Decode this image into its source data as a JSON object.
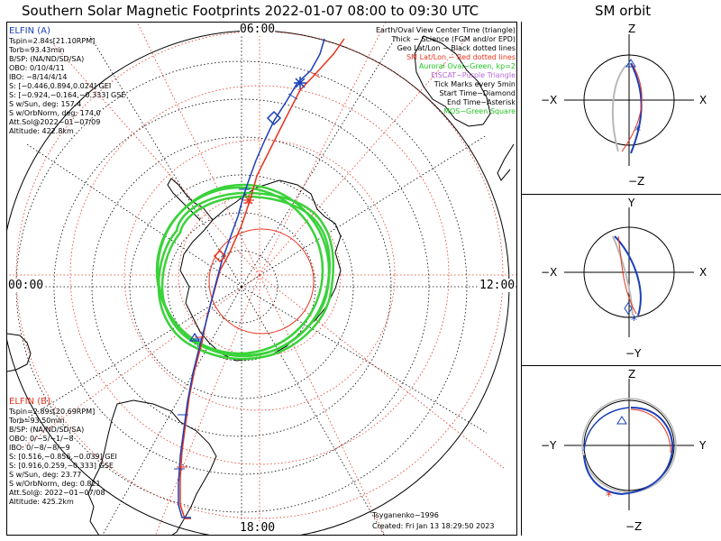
{
  "title": "Southern Solar Magnetic Footprints 2022-01-07 08:00 to 09:30 UTC",
  "sm_orbit_title": "SM orbit",
  "elfin_a": {
    "name": "ELFIN (A)",
    "lines": [
      "Tspin=2.84s[21.10RPM]",
      "Torb=93.43min",
      "B/SP: (NA/ND/SD/SA)",
      "OBO: 0/10/4/11",
      "IBO: −8/14/4/14",
      "S: [−0.446,0.894,0.024] GEI",
      "S: [−0.924,−0.164,−0.333] GSE",
      "S w/Sun, deg: 157.4",
      "S w/OrbNorm, deg: 174.0",
      "Att.Sol@2022−01−07/09",
      "Altitude: 422.8km"
    ],
    "color": "#1a3fb8"
  },
  "elfin_b": {
    "name": "ELFIN (B)",
    "lines": [
      "Tspin=2.89s[20.69RPM]",
      "Torb=93.50min",
      "B/SP: (NA/ND/SD/SA)",
      "OBO: 0/−5/−1/−8",
      "IBO: 0/−8/−8/−9",
      "S: [0.516,−0.856,−0.039] GEI",
      "S: [0.916,0.259,−0.333] GSE",
      "S w/Sun, deg: 23.77",
      "S w/OrbNorm, deg: 0.821",
      "Att.Sol@: 2022−01−07/08",
      "Altitude: 425.2km"
    ],
    "color": "#e8331e"
  },
  "legend": {
    "l1": "Earth/Oval View Center Time (triangle)",
    "l2": "Thick − Science (FGM and/or EPD)",
    "l3": "Geo Lat/Lon − Black dotted lines",
    "l4": "SM Lat/Lon − Red dotted lines",
    "l5": "Auroral Oval−Green, kp=2",
    "l6": "EISCAT−Purple Triangle",
    "l7": "Tick Marks every 5min",
    "l8": "Start Time−Diamond",
    "l9": "End Time−Asterisk",
    "l10": "MOS−Green Square"
  },
  "times": {
    "top": "06:00",
    "left": "00:00",
    "right": "12:00",
    "bottom": "18:00"
  },
  "footer": {
    "model": "Tsyganenko−1996",
    "created": "Created: Fri Jan 13 18:29:50 2023"
  },
  "orbits": [
    {
      "h": "−X",
      "hr": "X",
      "vt": "Z",
      "vb": "−Z"
    },
    {
      "h": "−X",
      "hr": "X",
      "vt": "Y",
      "vb": "−Y"
    },
    {
      "h": "−Y",
      "hr": "Y",
      "vt": "Z",
      "vb": "−Z"
    }
  ],
  "colors": {
    "grid_geo": "#000000",
    "grid_sm": "#e8331e",
    "oval": "#3ad23a",
    "blue": "#1a3fb8",
    "red": "#e8331e",
    "gray": "#b8b8b8"
  }
}
